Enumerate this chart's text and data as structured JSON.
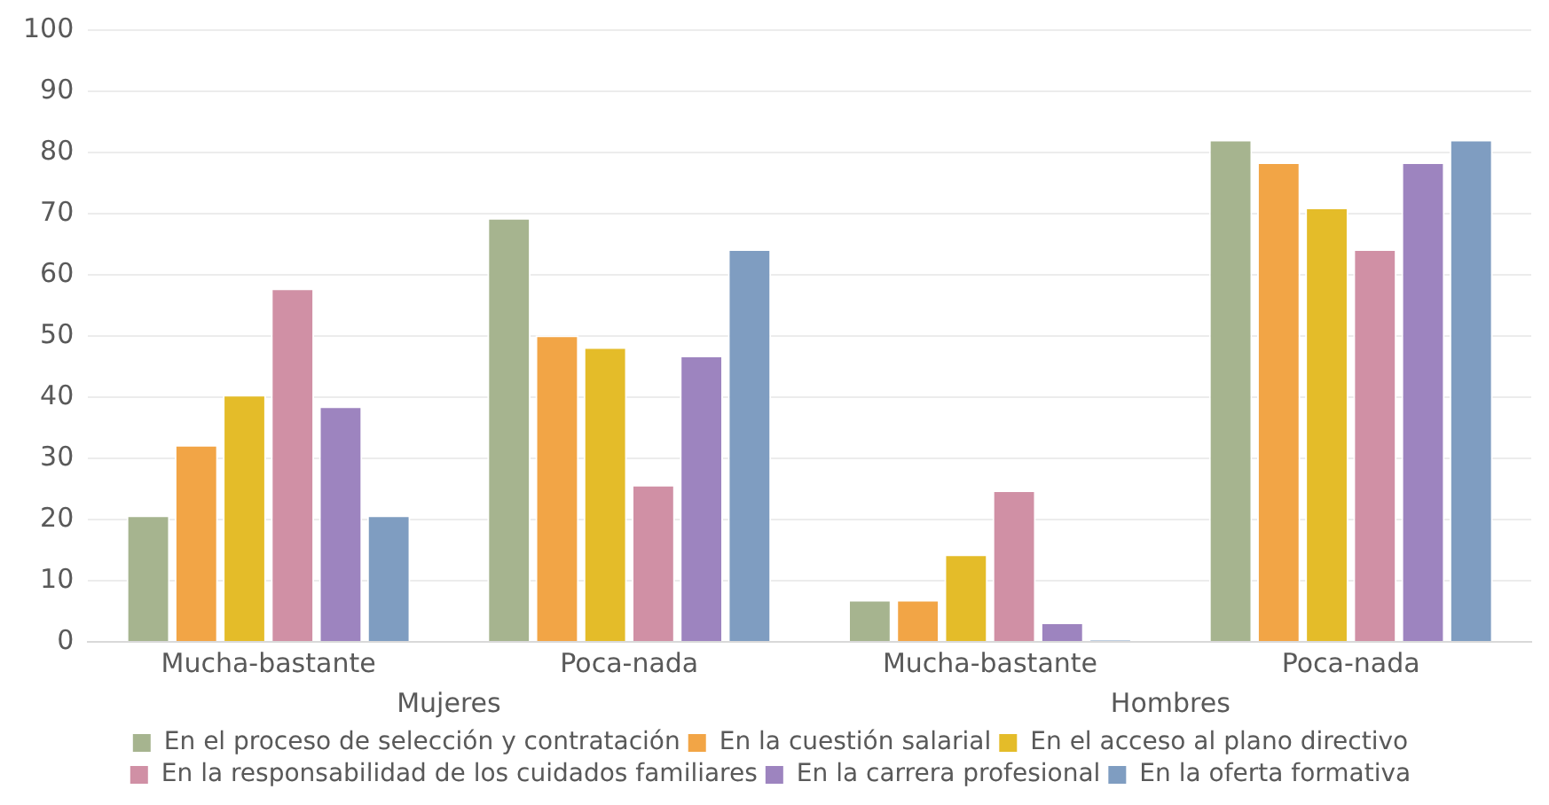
{
  "chart_data": {
    "type": "bar",
    "categories": [
      "Mucha-bastante",
      "Poca-nada",
      "Mucha-bastante",
      "Poca-nada"
    ],
    "annotations": [
      "Mujeres",
      "Hombres"
    ],
    "series": [
      {
        "name": "En el proceso de selección y contratación",
        "color": "#a6b48f",
        "values": [
          20.7,
          69.3,
          6.9,
          82.1
        ]
      },
      {
        "name": "En la cuestión salarial",
        "color": "#f2a546",
        "values": [
          32.2,
          50.1,
          6.9,
          78.4
        ]
      },
      {
        "name": "En el acceso al plano directivo",
        "color": "#e4bc29",
        "values": [
          40.4,
          48.2,
          14.3,
          71.0
        ]
      },
      {
        "name": "En la responsabilidad de los cuidados familiares",
        "color": "#d090a5",
        "values": [
          57.8,
          25.7,
          24.8,
          64.2
        ]
      },
      {
        "name": "En la carrera profesional",
        "color": "#9d84bf",
        "values": [
          38.5,
          46.8,
          3.2,
          78.4
        ]
      },
      {
        "name": "En la oferta formativa",
        "color": "#7f9dc1",
        "values": [
          20.7,
          64.2,
          0.3,
          82.1
        ]
      }
    ],
    "ylim": [
      0,
      100
    ],
    "yticks": [
      0,
      10,
      20,
      30,
      40,
      50,
      60,
      70,
      80,
      90,
      100
    ],
    "grid": "y",
    "legend": "bottom"
  }
}
